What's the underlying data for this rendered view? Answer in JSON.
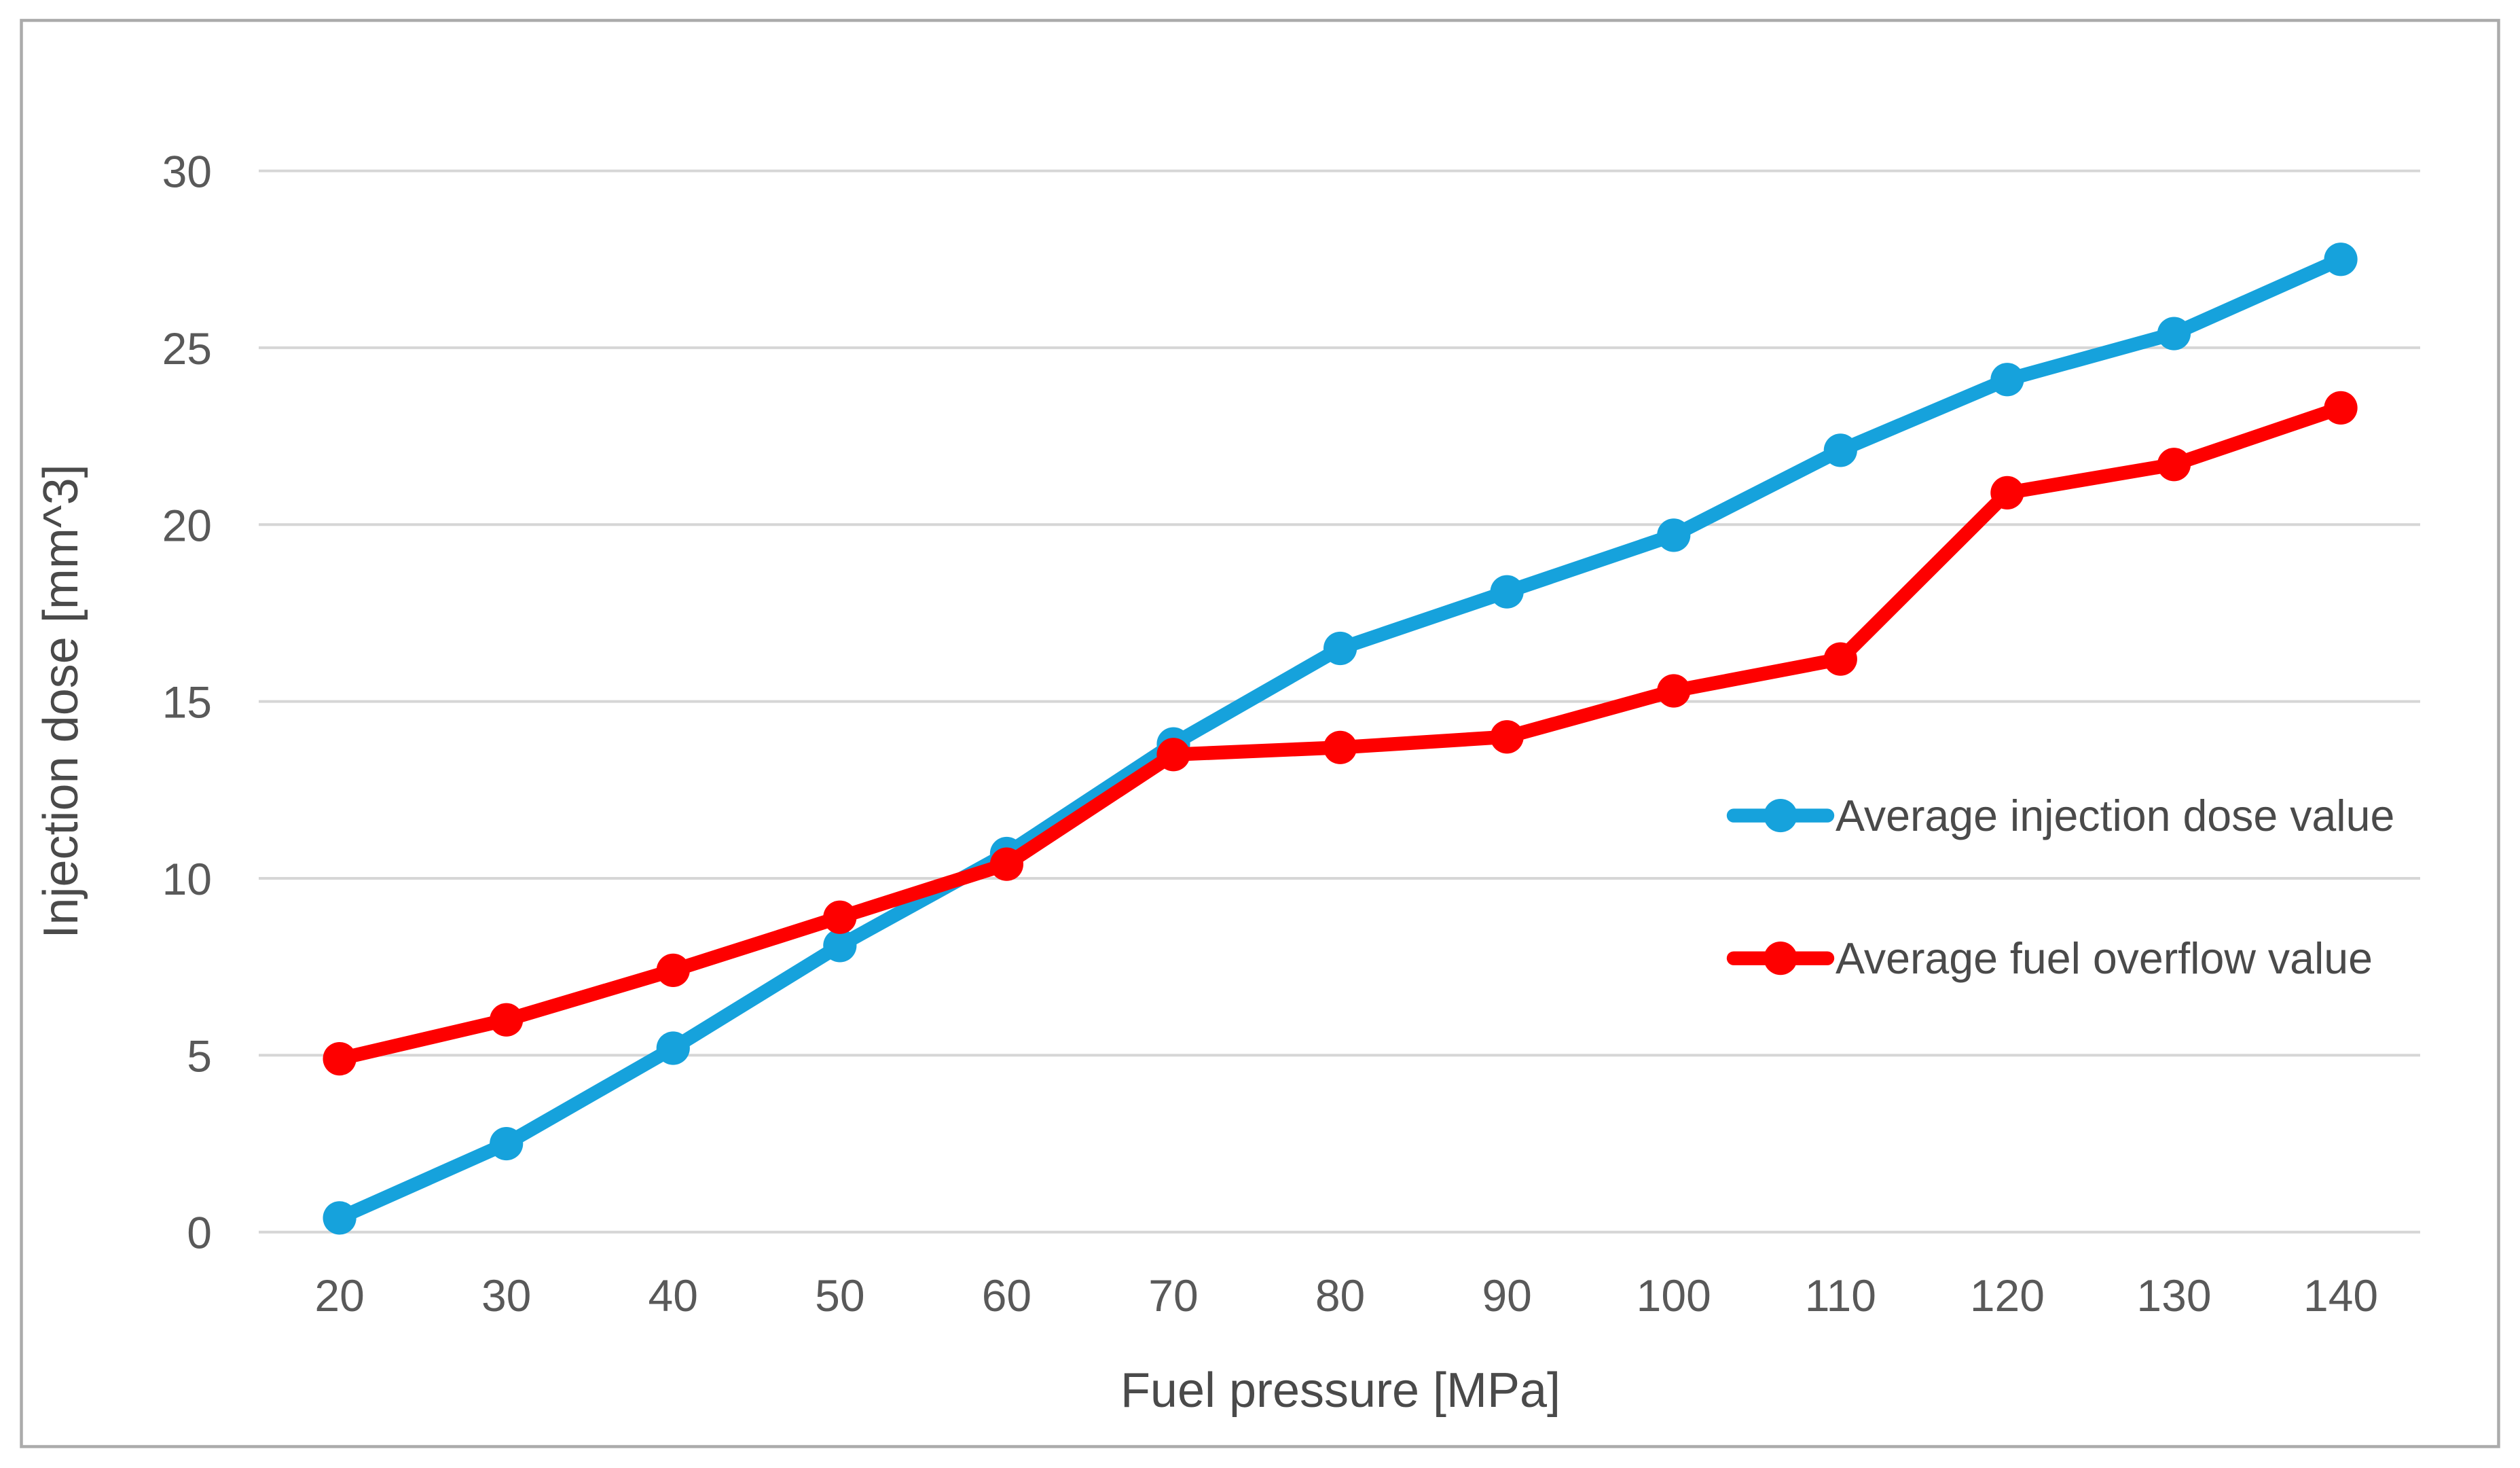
{
  "chart_data": {
    "type": "line",
    "title": "",
    "xlabel": "Fuel pressure [MPa]",
    "ylabel": "Injection dose [mm^3]",
    "x": [
      20,
      30,
      40,
      50,
      60,
      70,
      80,
      90,
      100,
      110,
      120,
      130,
      140
    ],
    "xticks": [
      20,
      30,
      40,
      50,
      60,
      70,
      80,
      90,
      100,
      110,
      120,
      130,
      140
    ],
    "yticks": [
      0,
      5,
      10,
      15,
      20,
      25,
      30
    ],
    "ylim": [
      0,
      30
    ],
    "grid": "horizontal",
    "legend_position": "inside-right",
    "series": [
      {
        "name": "Average injection dose value",
        "color": "#16A2DC",
        "marker": "circle",
        "values": [
          0.4,
          2.5,
          5.2,
          8.1,
          10.7,
          13.8,
          16.5,
          18.1,
          19.7,
          22.1,
          24.1,
          25.4,
          27.5
        ]
      },
      {
        "name": "Average fuel overflow value",
        "color": "#FE0000",
        "marker": "circle",
        "values": [
          4.9,
          6.0,
          7.4,
          8.9,
          10.4,
          13.5,
          13.7,
          14.0,
          15.3,
          16.2,
          20.9,
          21.7,
          23.3
        ]
      }
    ],
    "colors": {
      "gridline": "#D6D6D6",
      "tick_text": "#595959",
      "axis_title_text": "#4A4A4A",
      "legend_text": "#4A4A4A",
      "border": "#ABABAB",
      "background": "#FFFFFF"
    }
  }
}
